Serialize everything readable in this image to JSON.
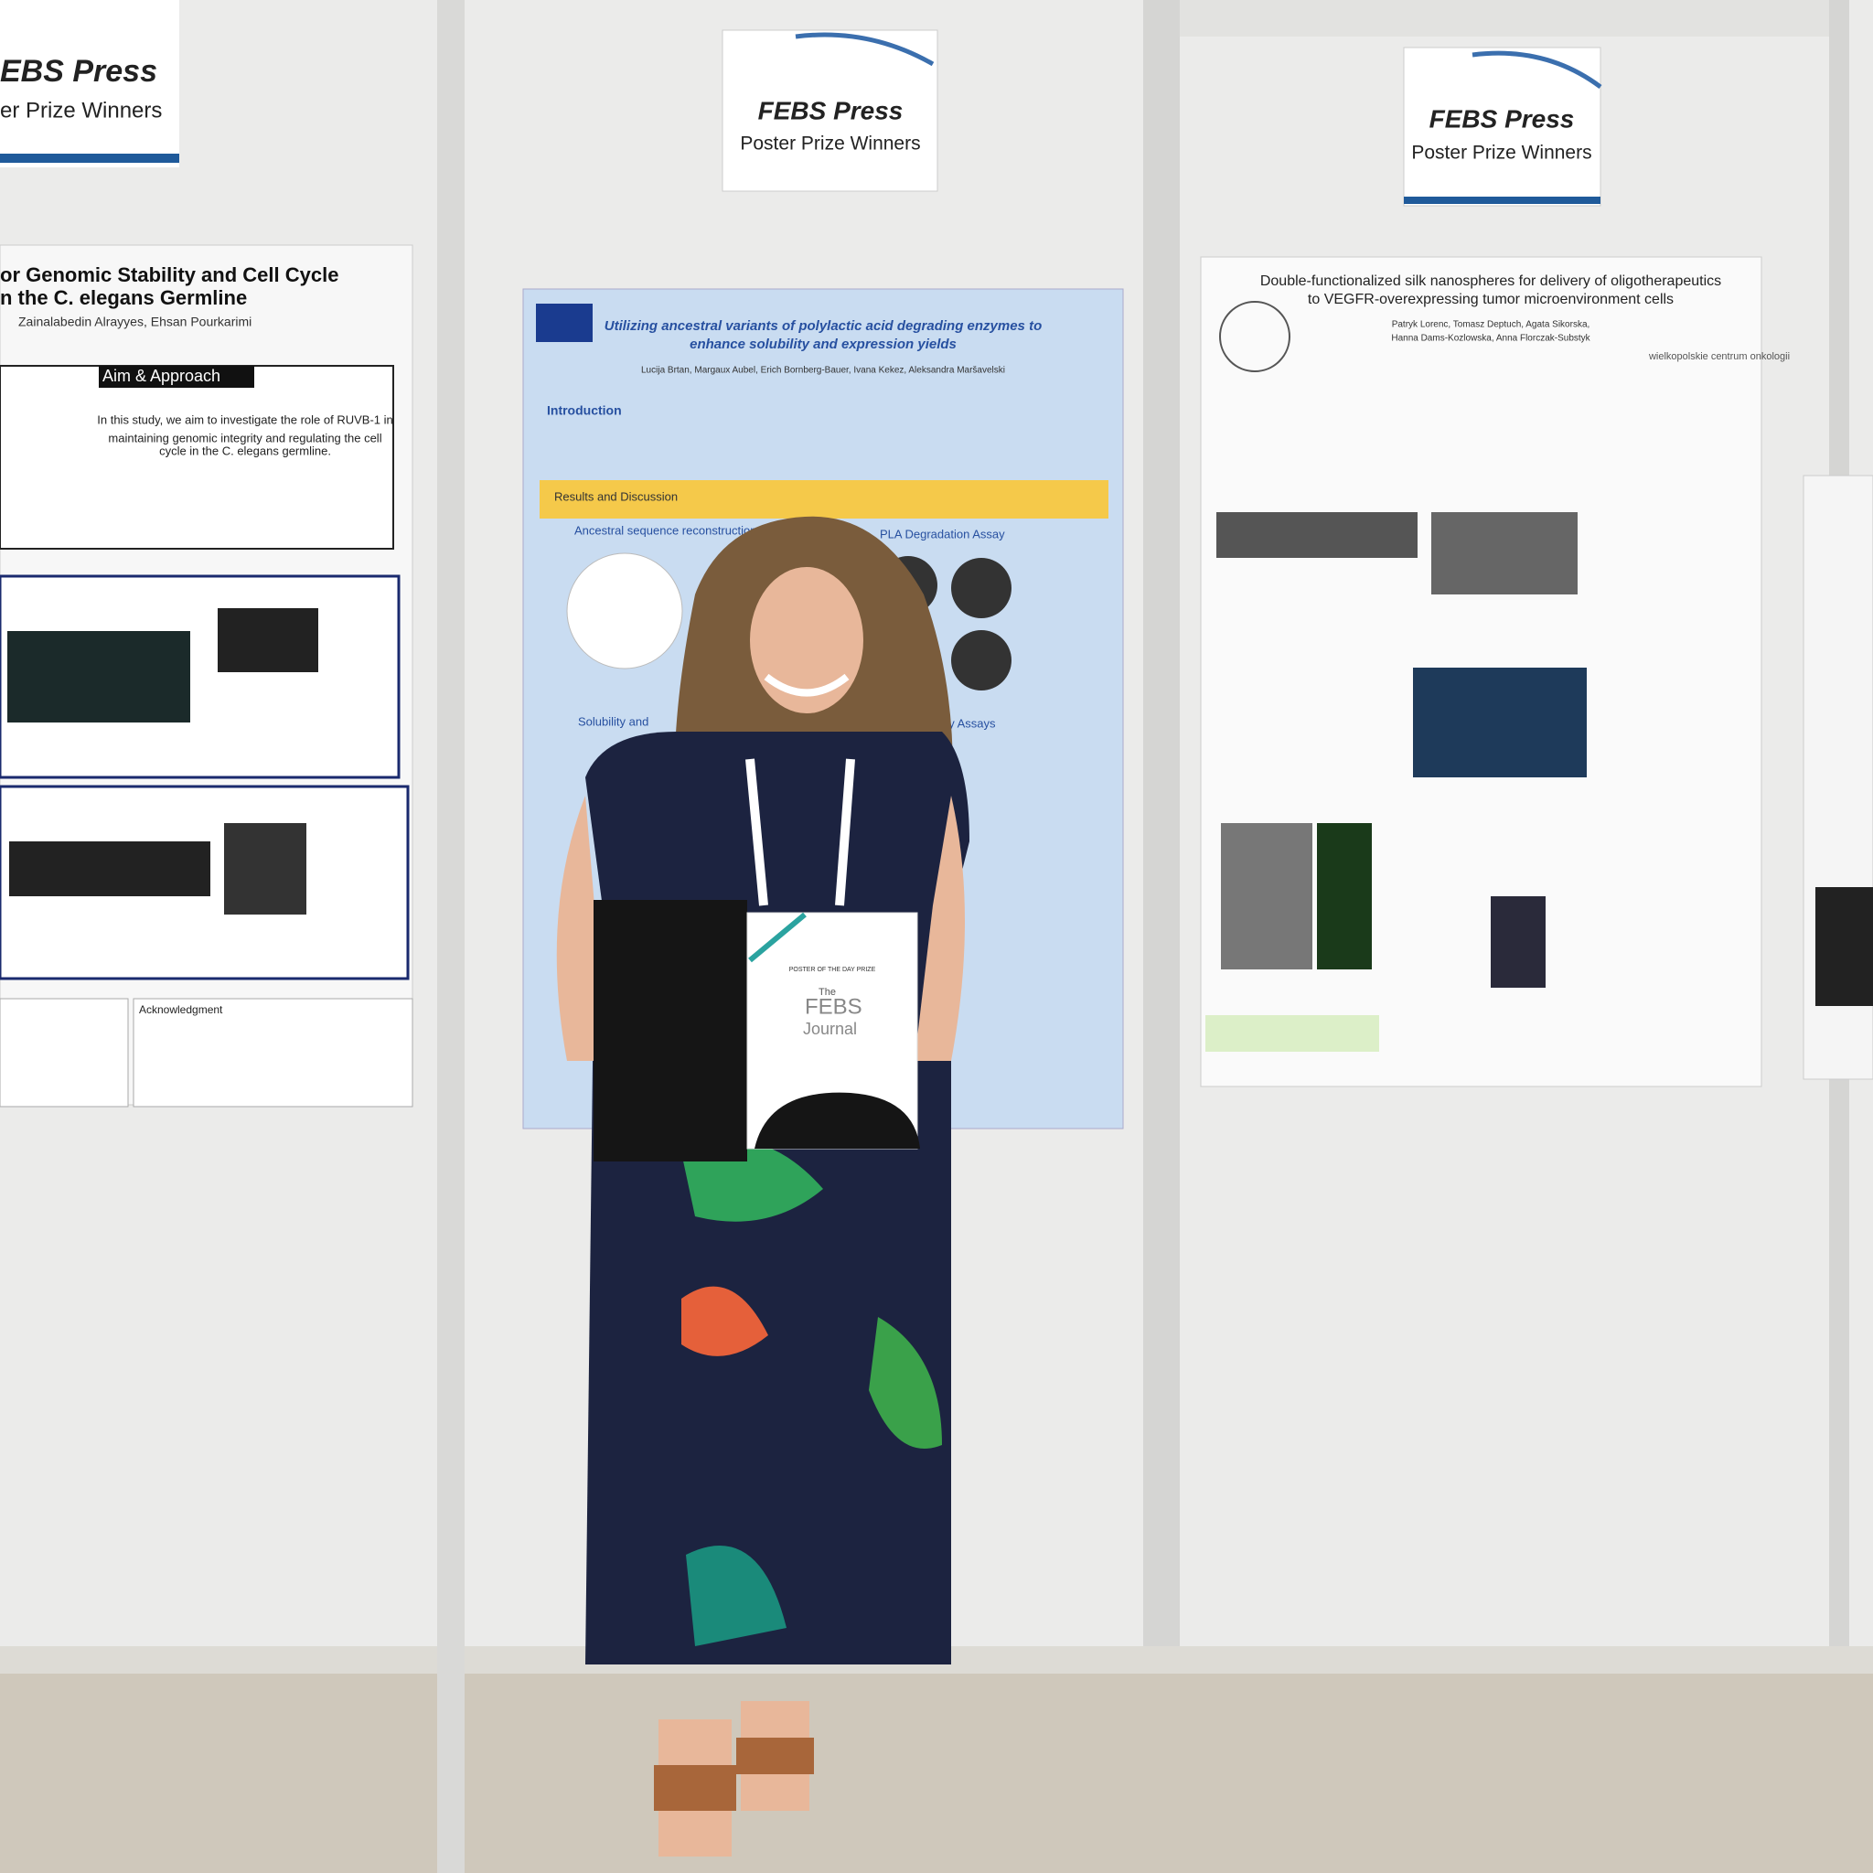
{
  "signs": [
    {
      "title": "EBS Press",
      "subtitle": "er Prize Winners"
    },
    {
      "title": "FEBS Press",
      "subtitle": "Poster Prize Winners"
    },
    {
      "title": "FEBS Press",
      "subtitle": "Poster Prize Winners"
    }
  ],
  "posters": {
    "left": {
      "title_lines": [
        "or Genomic Stability and Cell Cycle",
        "n the C. elegans Germline"
      ],
      "authors": "Zainalabedin Alrayyes, Ehsan Pourkarimi",
      "section": "Aim & Approach",
      "aim": [
        "In this study, we aim to investigate the role of RUVB-1 in",
        "maintaining genomic integrity and regulating the cell",
        "cycle in the C. elegans germline."
      ],
      "acknowledgment": "Acknowledgment"
    },
    "center": {
      "title_lines": [
        "Utilizing ancestral variants of polylactic acid degrading enzymes to",
        "enhance solubility and expression yields"
      ],
      "authors": "Lucija Brtan, Margaux Aubel, Erich Bornberg-Bauer, Ivana Kekez, Aleksandra Maršavelski",
      "introduction": "Introduction",
      "results": "Results and Discussion",
      "sections": [
        "Ancestral sequence reconstruction",
        "PLA Degradation Assay",
        "Solubility and",
        "rmostability Assays"
      ]
    },
    "right": {
      "title_lines": [
        "Double-functionalized silk nanospheres for delivery of oligotherapeutics",
        "to VEGFR-overexpressing tumor microenvironment cells"
      ],
      "authors": [
        "Patryk Lorenc, Tomasz Deptuch, Agata Sikorska,",
        "Hanna Dams-Kozlowska, Anna Florczak-Substyk"
      ],
      "logo": "wielkopolskie centrum onkologii"
    }
  },
  "certificate": {
    "prize": "POSTER OF THE DAY PRIZE",
    "journal_line1": "The",
    "journal_line2": "FEBS",
    "journal_line3": "Journal"
  }
}
